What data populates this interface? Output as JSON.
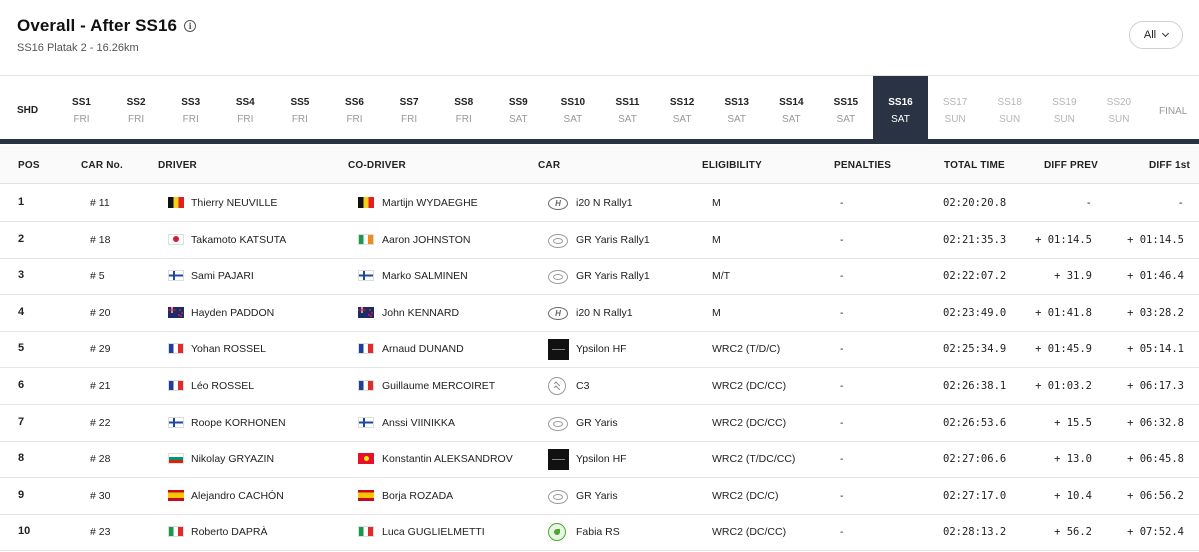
{
  "header": {
    "title": "Overall - After SS16",
    "subtitle": "SS16 Platak 2 - 16.26km",
    "filter_label": "All"
  },
  "stages": {
    "shd_label": "SHD",
    "final_label": "FINAL",
    "items": [
      {
        "name": "SS1",
        "day": "FRI",
        "state": "done"
      },
      {
        "name": "SS2",
        "day": "FRI",
        "state": "done"
      },
      {
        "name": "SS3",
        "day": "FRI",
        "state": "done"
      },
      {
        "name": "SS4",
        "day": "FRI",
        "state": "done"
      },
      {
        "name": "SS5",
        "day": "FRI",
        "state": "done"
      },
      {
        "name": "SS6",
        "day": "FRI",
        "state": "done"
      },
      {
        "name": "SS7",
        "day": "FRI",
        "state": "done"
      },
      {
        "name": "SS8",
        "day": "FRI",
        "state": "done"
      },
      {
        "name": "SS9",
        "day": "SAT",
        "state": "done"
      },
      {
        "name": "SS10",
        "day": "SAT",
        "state": "done"
      },
      {
        "name": "SS11",
        "day": "SAT",
        "state": "done"
      },
      {
        "name": "SS12",
        "day": "SAT",
        "state": "done"
      },
      {
        "name": "SS13",
        "day": "SAT",
        "state": "done"
      },
      {
        "name": "SS14",
        "day": "SAT",
        "state": "done"
      },
      {
        "name": "SS15",
        "day": "SAT",
        "state": "done"
      },
      {
        "name": "SS16",
        "day": "SAT",
        "state": "active"
      },
      {
        "name": "SS17",
        "day": "SUN",
        "state": "future"
      },
      {
        "name": "SS18",
        "day": "SUN",
        "state": "future"
      },
      {
        "name": "SS19",
        "day": "SUN",
        "state": "future"
      },
      {
        "name": "SS20",
        "day": "SUN",
        "state": "future"
      }
    ]
  },
  "table": {
    "columns": {
      "pos": "POS",
      "car_no": "CAR No.",
      "driver": "DRIVER",
      "co_driver": "CO-DRIVER",
      "car": "CAR",
      "eligibility": "ELIGIBILITY",
      "penalties": "PENALTIES",
      "total_time": "TOTAL TIME",
      "diff_prev": "DIFF PREV",
      "diff_first": "DIFF 1st"
    },
    "rows": [
      {
        "pos": "1",
        "car_no": "# 11",
        "driver": "Thierry NEUVILLE",
        "driver_flag": "be",
        "co_driver": "Martijn WYDAEGHE",
        "co_driver_flag": "be",
        "car": "i20 N Rally1",
        "car_logo": "hyundai",
        "eligibility": "M",
        "penalties": "-",
        "total_time": "02:20:20.8",
        "diff_prev": "-",
        "diff_first": "-"
      },
      {
        "pos": "2",
        "car_no": "# 18",
        "driver": "Takamoto KATSUTA",
        "driver_flag": "jp",
        "co_driver": "Aaron JOHNSTON",
        "co_driver_flag": "ie",
        "car": "GR Yaris Rally1",
        "car_logo": "toyota",
        "eligibility": "M",
        "penalties": "-",
        "total_time": "02:21:35.3",
        "diff_prev": "+ 01:14.5",
        "diff_first": "+ 01:14.5"
      },
      {
        "pos": "3",
        "car_no": "# 5",
        "driver": "Sami PAJARI",
        "driver_flag": "fi",
        "co_driver": "Marko SALMINEN",
        "co_driver_flag": "fi",
        "car": "GR Yaris Rally1",
        "car_logo": "toyota",
        "eligibility": "M/T",
        "penalties": "-",
        "total_time": "02:22:07.2",
        "diff_prev": "+ 31.9",
        "diff_first": "+ 01:46.4"
      },
      {
        "pos": "4",
        "car_no": "# 20",
        "driver": "Hayden PADDON",
        "driver_flag": "nz",
        "co_driver": "John KENNARD",
        "co_driver_flag": "nz",
        "car": "i20 N Rally1",
        "car_logo": "hyundai",
        "eligibility": "M",
        "penalties": "-",
        "total_time": "02:23:49.0",
        "diff_prev": "+ 01:41.8",
        "diff_first": "+ 03:28.2"
      },
      {
        "pos": "5",
        "car_no": "# 29",
        "driver": "Yohan ROSSEL",
        "driver_flag": "fr",
        "co_driver": "Arnaud DUNAND",
        "co_driver_flag": "fr",
        "car": "Ypsilon HF",
        "car_logo": "lancia",
        "eligibility": "WRC2 (T/D/C)",
        "penalties": "-",
        "total_time": "02:25:34.9",
        "diff_prev": "+ 01:45.9",
        "diff_first": "+ 05:14.1"
      },
      {
        "pos": "6",
        "car_no": "# 21",
        "driver": "Léo ROSSEL",
        "driver_flag": "fr",
        "co_driver": "Guillaume MERCOIRET",
        "co_driver_flag": "fr",
        "car": "C3",
        "car_logo": "citroen",
        "eligibility": "WRC2 (DC/CC)",
        "penalties": "-",
        "total_time": "02:26:38.1",
        "diff_prev": "+ 01:03.2",
        "diff_first": "+ 06:17.3"
      },
      {
        "pos": "7",
        "car_no": "# 22",
        "driver": "Roope KORHONEN",
        "driver_flag": "fi",
        "co_driver": "Anssi VIINIKKA",
        "co_driver_flag": "fi",
        "car": "GR Yaris",
        "car_logo": "toyota",
        "eligibility": "WRC2 (DC/CC)",
        "penalties": "-",
        "total_time": "02:26:53.6",
        "diff_prev": "+ 15.5",
        "diff_first": "+ 06:32.8"
      },
      {
        "pos": "8",
        "car_no": "# 28",
        "driver": "Nikolay GRYAZIN",
        "driver_flag": "bg",
        "co_driver": "Konstantin ALEKSANDROV",
        "co_driver_flag": "kg",
        "car": "Ypsilon HF",
        "car_logo": "lancia",
        "eligibility": "WRC2 (T/DC/CC)",
        "penalties": "-",
        "total_time": "02:27:06.6",
        "diff_prev": "+ 13.0",
        "diff_first": "+ 06:45.8"
      },
      {
        "pos": "9",
        "car_no": "# 30",
        "driver": "Alejandro CACHÓN",
        "driver_flag": "es",
        "co_driver": "Borja ROZADA",
        "co_driver_flag": "es",
        "car": "GR Yaris",
        "car_logo": "toyota",
        "eligibility": "WRC2 (DC/C)",
        "penalties": "-",
        "total_time": "02:27:17.0",
        "diff_prev": "+ 10.4",
        "diff_first": "+ 06:56.2"
      },
      {
        "pos": "10",
        "car_no": "# 23",
        "driver": "Roberto DAPRÀ",
        "driver_flag": "it",
        "co_driver": "Luca GUGLIELMETTI",
        "co_driver_flag": "it",
        "car": "Fabia RS",
        "car_logo": "skoda",
        "eligibility": "WRC2 (DC/CC)",
        "penalties": "-",
        "total_time": "02:28:13.2",
        "diff_prev": "+ 56.2",
        "diff_first": "+ 07:52.4"
      }
    ]
  }
}
